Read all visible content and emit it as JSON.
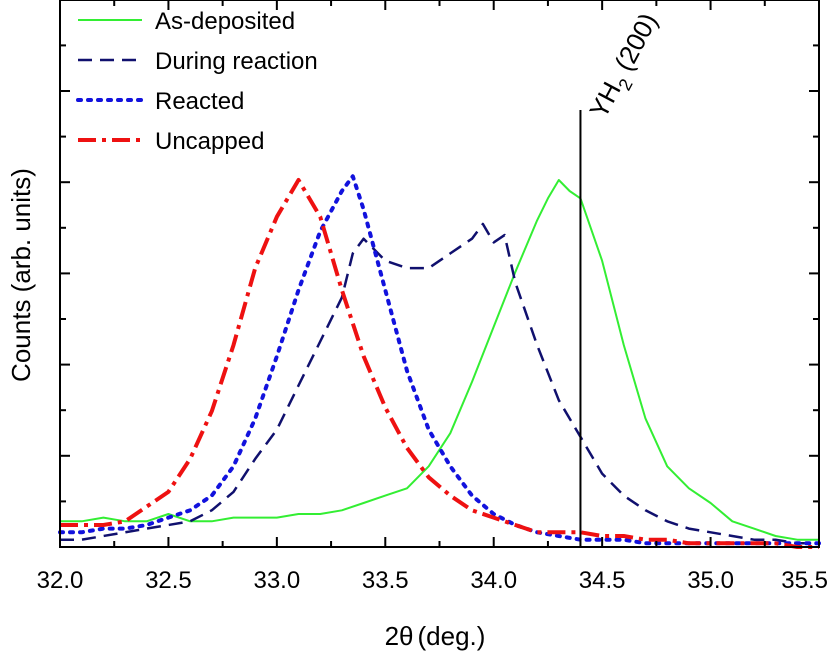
{
  "chart_data": {
    "type": "line",
    "title": "",
    "xlabel_main": "2θ",
    "xlabel_unit": "(deg.)",
    "ylabel": "Counts (arb. units)",
    "xlim": [
      32.0,
      35.5
    ],
    "ylim": [
      0,
      1
    ],
    "x_ticks": [
      32.0,
      32.5,
      33.0,
      33.5,
      34.0,
      34.5,
      35.0,
      35.5
    ],
    "x_tick_labels": [
      "32.0",
      "32.5",
      "33.0",
      "33.5",
      "34.0",
      "34.5",
      "35.0",
      "35.5"
    ],
    "y_tick_labels_shown": false,
    "legend_position": "top-left",
    "series": [
      {
        "name": "As-deposited",
        "color": "#33ee33",
        "style": "solid",
        "x": [
          32.0,
          32.1,
          32.2,
          32.3,
          32.4,
          32.5,
          32.6,
          32.7,
          32.8,
          32.9,
          33.0,
          33.1,
          33.2,
          33.3,
          33.4,
          33.5,
          33.6,
          33.7,
          33.8,
          33.9,
          34.0,
          34.1,
          34.2,
          34.25,
          34.3,
          34.35,
          34.4,
          34.5,
          34.6,
          34.7,
          34.8,
          34.9,
          35.0,
          35.1,
          35.2,
          35.3,
          35.4,
          35.5
        ],
        "y": [
          0.07,
          0.07,
          0.08,
          0.07,
          0.07,
          0.09,
          0.07,
          0.07,
          0.08,
          0.08,
          0.08,
          0.09,
          0.09,
          0.1,
          0.12,
          0.14,
          0.16,
          0.22,
          0.31,
          0.45,
          0.6,
          0.75,
          0.89,
          0.95,
          1.0,
          0.97,
          0.95,
          0.78,
          0.55,
          0.35,
          0.22,
          0.16,
          0.12,
          0.07,
          0.05,
          0.03,
          0.02,
          0.02
        ]
      },
      {
        "name": "During reaction",
        "color": "#10106e",
        "style": "dashed",
        "x": [
          32.0,
          32.1,
          32.2,
          32.3,
          32.4,
          32.5,
          32.6,
          32.7,
          32.8,
          32.9,
          33.0,
          33.1,
          33.2,
          33.3,
          33.35,
          33.4,
          33.5,
          33.6,
          33.7,
          33.8,
          33.9,
          33.95,
          34.0,
          34.05,
          34.1,
          34.2,
          34.3,
          34.4,
          34.5,
          34.6,
          34.7,
          34.8,
          34.9,
          35.0,
          35.1,
          35.2,
          35.3,
          35.4,
          35.5
        ],
        "y": [
          0.02,
          0.02,
          0.03,
          0.04,
          0.05,
          0.06,
          0.07,
          0.1,
          0.15,
          0.24,
          0.32,
          0.44,
          0.56,
          0.68,
          0.8,
          0.84,
          0.78,
          0.76,
          0.76,
          0.8,
          0.84,
          0.88,
          0.83,
          0.85,
          0.72,
          0.55,
          0.4,
          0.3,
          0.2,
          0.14,
          0.1,
          0.07,
          0.05,
          0.04,
          0.03,
          0.02,
          0.02,
          0.01,
          0.01
        ]
      },
      {
        "name": "Reacted",
        "color": "#1212dd",
        "style": "dotted",
        "x": [
          32.0,
          32.1,
          32.2,
          32.3,
          32.4,
          32.5,
          32.6,
          32.7,
          32.8,
          32.9,
          33.0,
          33.1,
          33.2,
          33.3,
          33.35,
          33.4,
          33.5,
          33.6,
          33.7,
          33.8,
          33.9,
          34.0,
          34.1,
          34.2,
          34.3,
          34.4,
          34.5,
          34.6,
          34.7,
          34.8,
          34.9,
          35.0,
          35.1,
          35.2,
          35.3,
          35.4,
          35.5
        ],
        "y": [
          0.04,
          0.04,
          0.05,
          0.05,
          0.06,
          0.08,
          0.1,
          0.14,
          0.22,
          0.35,
          0.52,
          0.7,
          0.86,
          0.97,
          1.01,
          0.92,
          0.7,
          0.48,
          0.32,
          0.22,
          0.14,
          0.09,
          0.06,
          0.04,
          0.03,
          0.02,
          0.02,
          0.02,
          0.01,
          0.01,
          0.01,
          0.01,
          0.01,
          0.01,
          0.01,
          0.01,
          0.01
        ]
      },
      {
        "name": "Uncapped",
        "color": "#ee1111",
        "style": "dashdot",
        "x": [
          32.0,
          32.1,
          32.2,
          32.3,
          32.4,
          32.5,
          32.6,
          32.7,
          32.8,
          32.9,
          33.0,
          33.1,
          33.2,
          33.3,
          33.4,
          33.5,
          33.6,
          33.7,
          33.8,
          33.9,
          34.0,
          34.1,
          34.2,
          34.3,
          34.4,
          34.5,
          34.6,
          34.7,
          34.8,
          34.9,
          35.0,
          35.1,
          35.2,
          35.3,
          35.4,
          35.5
        ],
        "y": [
          0.06,
          0.06,
          0.06,
          0.07,
          0.11,
          0.15,
          0.24,
          0.37,
          0.55,
          0.76,
          0.9,
          1.0,
          0.9,
          0.7,
          0.52,
          0.38,
          0.27,
          0.19,
          0.14,
          0.1,
          0.08,
          0.06,
          0.04,
          0.04,
          0.04,
          0.03,
          0.03,
          0.02,
          0.02,
          0.01,
          0.01,
          0.01,
          0.01,
          0.01,
          0.0,
          0.0
        ]
      }
    ],
    "annotation": {
      "label_main": "YH",
      "label_sub": "2",
      "label_rest": " (200)",
      "x": 34.4
    }
  }
}
